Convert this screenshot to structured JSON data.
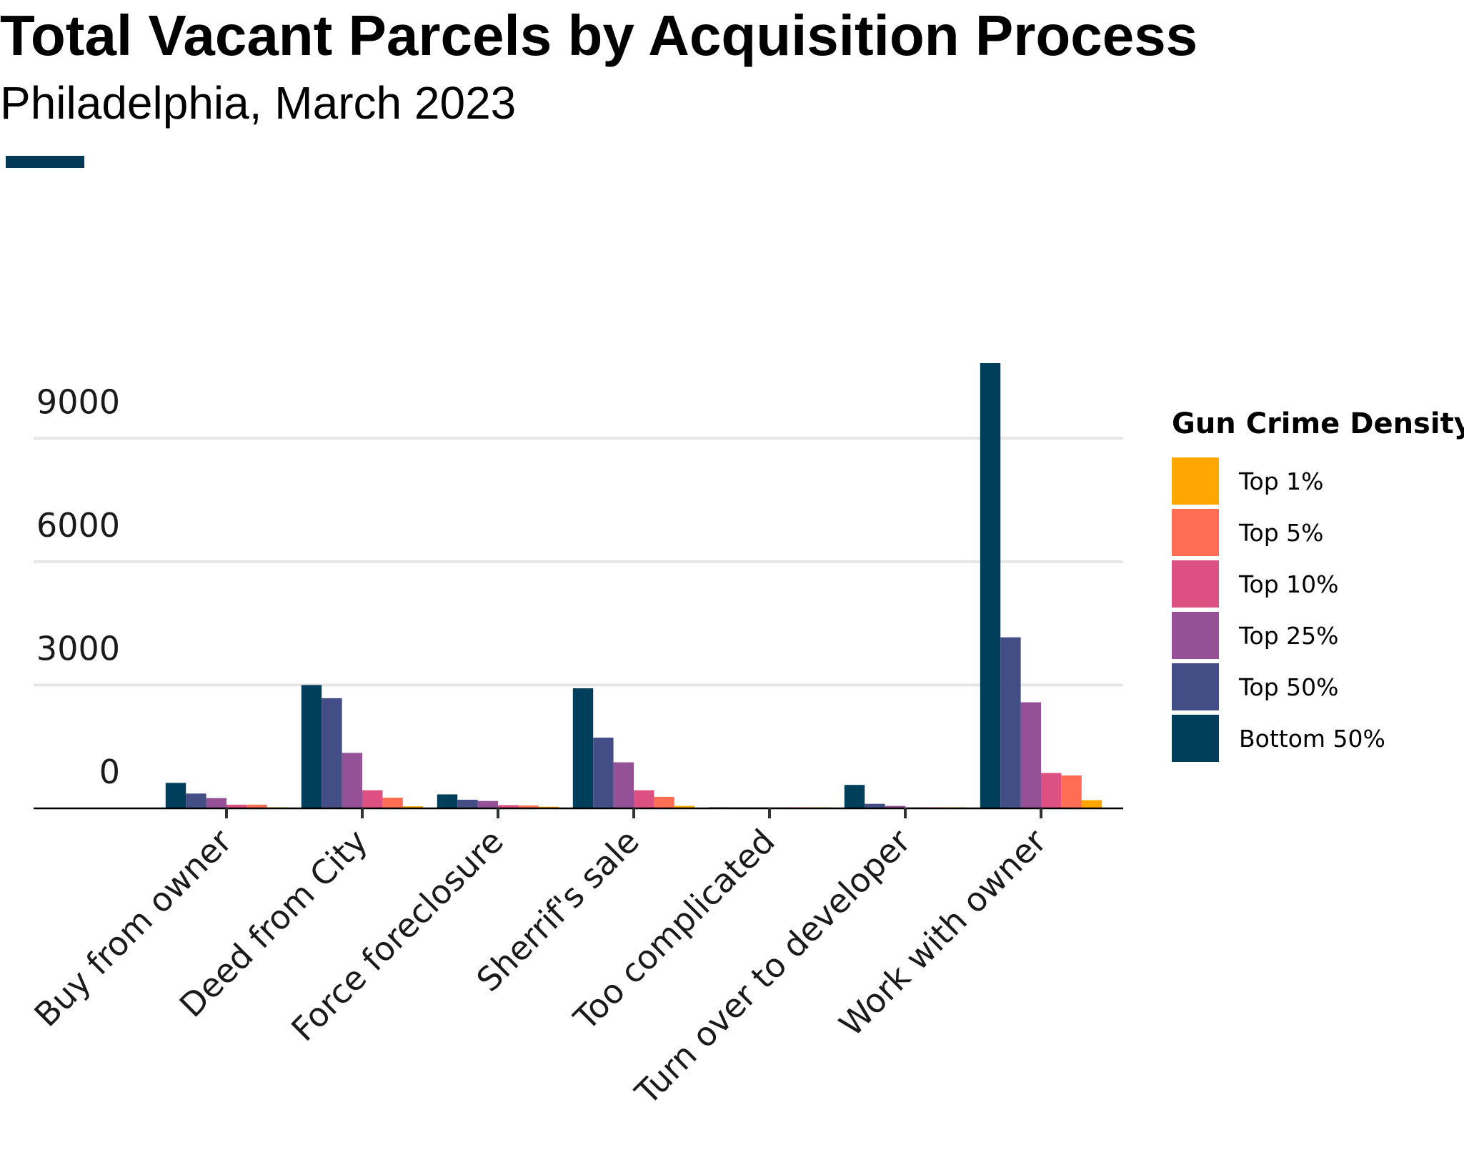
{
  "title": "Total Vacant Parcels by Acquisition Process",
  "subtitle": "Philadelphia, March 2023",
  "colors": {
    "accent": "#003a57",
    "axis_line": "#000000",
    "tick": "#333333",
    "grid": "#e6e6e6"
  },
  "legend": {
    "title": "Gun Crime Density",
    "items": [
      {
        "label": "Top 1%",
        "color": "#ffa600"
      },
      {
        "label": "Top 5%",
        "color": "#ff6e54"
      },
      {
        "label": "Top 10%",
        "color": "#dd5182"
      },
      {
        "label": "Top 25%",
        "color": "#955196"
      },
      {
        "label": "Top 50%",
        "color": "#444e86"
      },
      {
        "label": "Bottom 50%",
        "color": "#003f5c"
      }
    ]
  },
  "chart_data": {
    "type": "bar",
    "categories": [
      "Buy from owner",
      "Deed from City",
      "Force foreclosure",
      "Sherrif's sale",
      "Too complicated",
      "Turn over to developer",
      "Work with owner"
    ],
    "series": [
      {
        "name": "Bottom 50%",
        "color": "#003f5c",
        "values": [
          620,
          3000,
          340,
          2920,
          10,
          570,
          10830
        ]
      },
      {
        "name": "Top 50%",
        "color": "#444e86",
        "values": [
          360,
          2680,
          210,
          1720,
          5,
          110,
          4160
        ]
      },
      {
        "name": "Top 25%",
        "color": "#955196",
        "values": [
          250,
          1350,
          180,
          1120,
          3,
          60,
          2580
        ]
      },
      {
        "name": "Top 10%",
        "color": "#dd5182",
        "values": [
          90,
          440,
          80,
          440,
          2,
          20,
          860
        ]
      },
      {
        "name": "Top 5%",
        "color": "#ff6e54",
        "values": [
          90,
          260,
          70,
          280,
          2,
          20,
          800
        ]
      },
      {
        "name": "Top 1%",
        "color": "#ffa600",
        "values": [
          20,
          50,
          40,
          60,
          1,
          5,
          200
        ]
      }
    ],
    "y_ticks": [
      0,
      3000,
      6000,
      9000
    ],
    "y_tick_labels": [
      "0",
      "3000",
      "6000",
      "9000"
    ],
    "ylim": [
      0,
      10830
    ],
    "xlabel": "",
    "ylabel": "",
    "grid": true,
    "legend_position": "right"
  }
}
